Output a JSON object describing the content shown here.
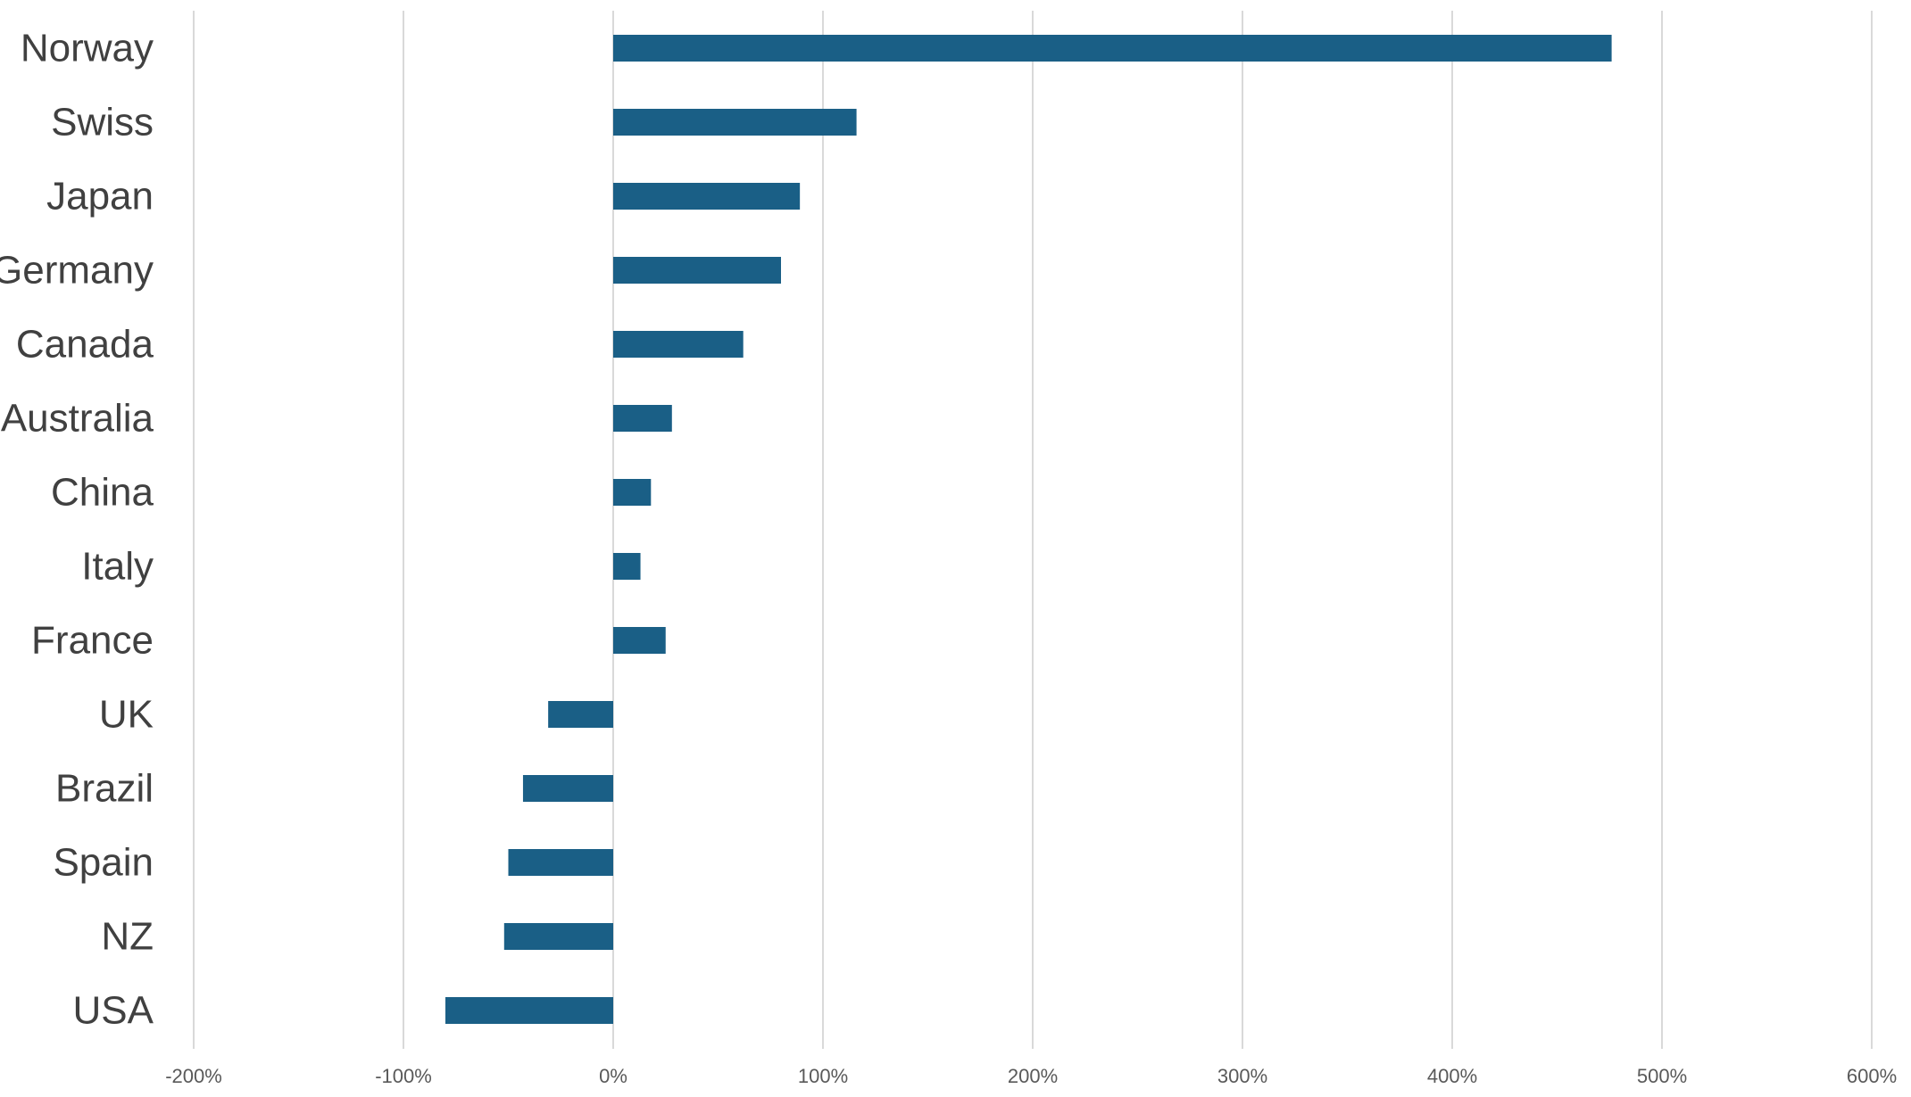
{
  "chart_data": {
    "type": "bar",
    "orientation": "horizontal",
    "categories": [
      "Norway",
      "Swiss",
      "Japan",
      "Germany",
      "Canada",
      "Australia",
      "China",
      "Italy",
      "France",
      "UK",
      "Brazil",
      "Spain",
      "NZ",
      "USA"
    ],
    "values": [
      476,
      116,
      89,
      80,
      62,
      28,
      18,
      13,
      25,
      -31,
      -43,
      -50,
      -52,
      -80
    ],
    "x_ticks": [
      -200,
      -100,
      0,
      100,
      200,
      300,
      400,
      500,
      600
    ],
    "x_tick_labels": [
      "-200%",
      "-100%",
      "0%",
      "100%",
      "200%",
      "300%",
      "400%",
      "500%",
      "600%"
    ],
    "xlim": [
      -200,
      600
    ],
    "unit": "%",
    "title": "",
    "xlabel": "",
    "ylabel": "",
    "grid": true,
    "legend": "none",
    "colors": {
      "bar": "#1a5f86",
      "grid": "#d9d9d9",
      "category_text": "#404040",
      "tick_text": "#595959"
    }
  }
}
